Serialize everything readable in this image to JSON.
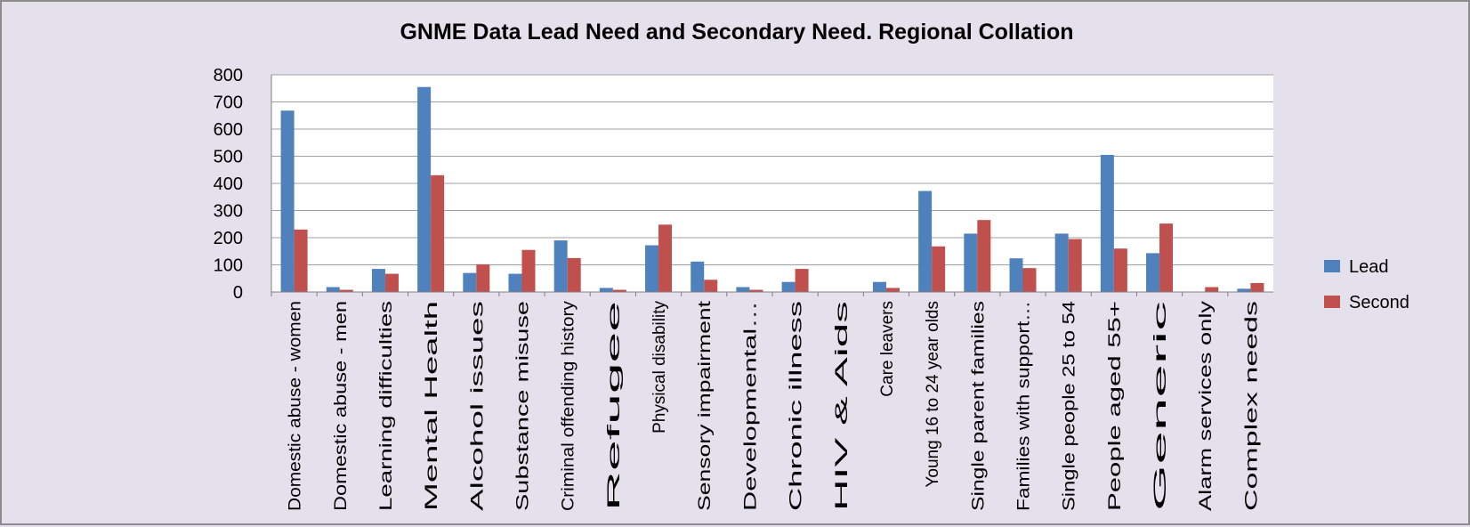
{
  "chart_data": {
    "type": "bar",
    "title": "GNME Data Lead Need and Secondary Need.   Regional Collation",
    "xlabel": "",
    "ylabel": "",
    "ylim": [
      0,
      800
    ],
    "yticks": [
      0,
      100,
      200,
      300,
      400,
      500,
      600,
      700,
      800
    ],
    "grid": true,
    "legend_position": "right",
    "categories": [
      "Domestic abuse - women",
      "Domestic abuse - men",
      "Learning difficulties",
      "Mental Health",
      "Alcohol issues",
      "Substance misuse",
      "Criminal offending history",
      "Refugee",
      "Physical disability",
      "Sensory impairment",
      "Developmental…",
      "Chronic illness",
      "HIV & Aids",
      "Care leavers",
      "Young 16 to 24 year olds",
      "Single parent families",
      "Families with support…",
      "Single people 25 to 54",
      "People aged 55+",
      "Generic",
      "Alarm services only",
      "Complex needs"
    ],
    "series": [
      {
        "name": "Lead",
        "color": "#4f81bd",
        "values": [
          668,
          18,
          85,
          755,
          70,
          67,
          190,
          15,
          172,
          112,
          18,
          37,
          0,
          37,
          372,
          215,
          124,
          215,
          505,
          143,
          0,
          12
        ]
      },
      {
        "name": "Second",
        "color": "#c0504d",
        "values": [
          230,
          8,
          67,
          430,
          102,
          155,
          125,
          8,
          248,
          45,
          8,
          85,
          0,
          15,
          168,
          265,
          88,
          195,
          160,
          252,
          18,
          33
        ]
      }
    ]
  }
}
